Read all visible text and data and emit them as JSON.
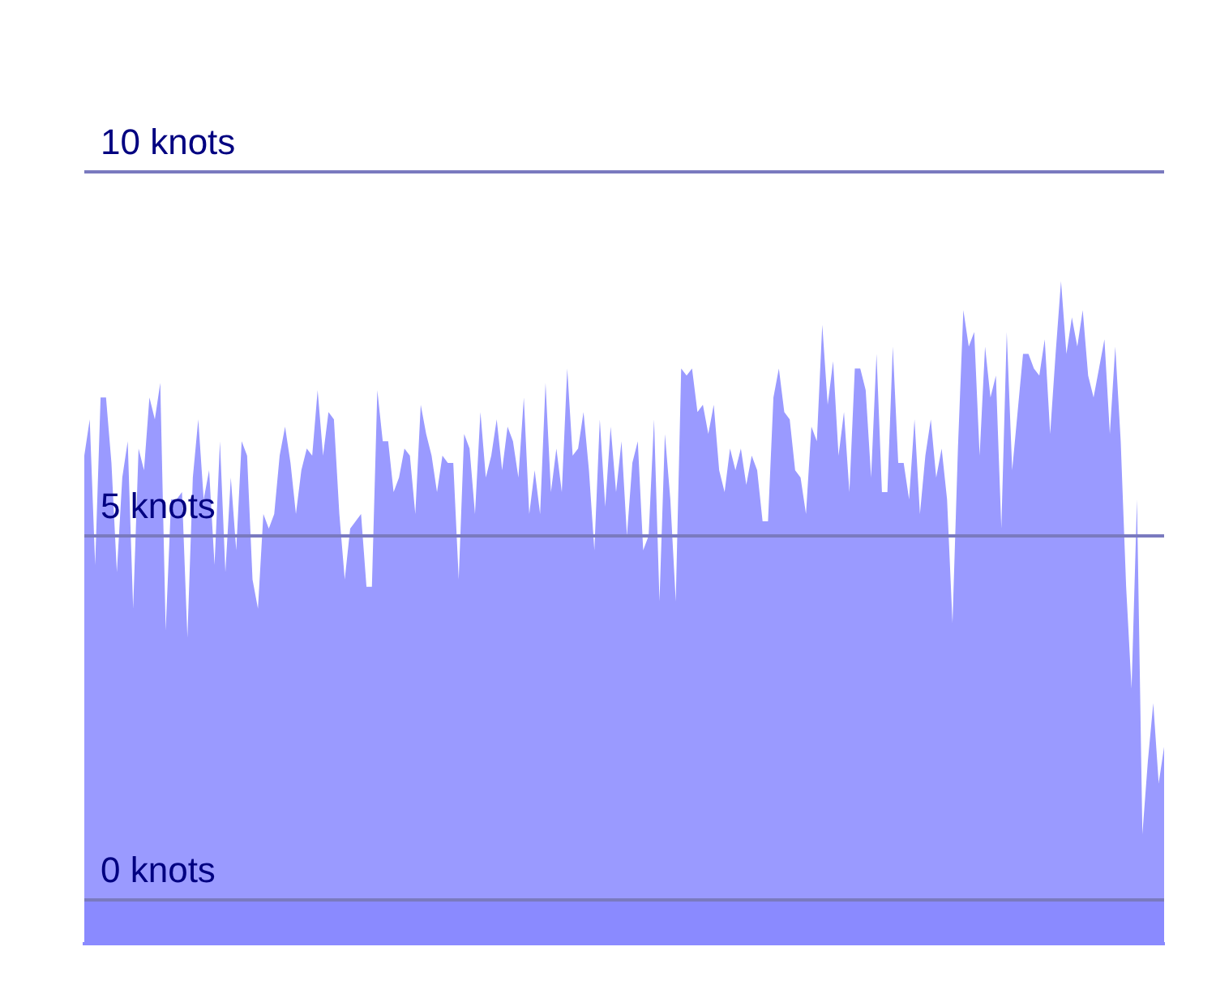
{
  "chart_data": {
    "type": "area",
    "categories": [
      null,
      null,
      null,
      null,
      null,
      null,
      null,
      null,
      null,
      null,
      null,
      null,
      null,
      null,
      null,
      null,
      null,
      null,
      null,
      null,
      null,
      null,
      null,
      null,
      null,
      null,
      null,
      null,
      null,
      null,
      null,
      null,
      null,
      null,
      null,
      null,
      null,
      null,
      null,
      null,
      null,
      null,
      null,
      null,
      null,
      null,
      null,
      null,
      null,
      null,
      null,
      null,
      null,
      null,
      null,
      null,
      null,
      null,
      null,
      null,
      null,
      null,
      null,
      null,
      null,
      null,
      null,
      null,
      null,
      null,
      null,
      null,
      null,
      null,
      null,
      null,
      null,
      null,
      null,
      null,
      null,
      null,
      null,
      null,
      null,
      null,
      null,
      null,
      null,
      null,
      null,
      null,
      null,
      null,
      null,
      null,
      null,
      null,
      null,
      null,
      null,
      null,
      null,
      null,
      null,
      null,
      null,
      null,
      null,
      null,
      null,
      null,
      null,
      null,
      null,
      null,
      null,
      null,
      null,
      null,
      null,
      null,
      null,
      null,
      null,
      null,
      null,
      null,
      null,
      null,
      null,
      null,
      null,
      null,
      null,
      null,
      null,
      null,
      null,
      null,
      null,
      null,
      null,
      null,
      null,
      null,
      null,
      null,
      null,
      null,
      null,
      null,
      null,
      null,
      null,
      null,
      null,
      null,
      null,
      null,
      null,
      null,
      null,
      null,
      null,
      null,
      null,
      null,
      null,
      null,
      null,
      null,
      null,
      null,
      null,
      null,
      null,
      null,
      null,
      null,
      null,
      null,
      null,
      null,
      null,
      null,
      null,
      null,
      null,
      null,
      null,
      null,
      null,
      null,
      null,
      null,
      null,
      null,
      null,
      null
    ],
    "values": [
      6.1,
      6.6,
      4.6,
      6.9,
      6.9,
      6.0,
      4.5,
      5.8,
      6.3,
      4.0,
      6.2,
      5.9,
      6.9,
      6.6,
      7.1,
      3.7,
      5.5,
      5.5,
      5.6,
      3.6,
      5.8,
      6.6,
      5.5,
      5.9,
      4.6,
      6.3,
      4.5,
      5.8,
      4.8,
      6.3,
      6.1,
      4.4,
      4.0,
      5.3,
      5.1,
      5.3,
      6.1,
      6.5,
      6.0,
      5.3,
      5.9,
      6.2,
      6.1,
      7.0,
      6.1,
      6.7,
      6.6,
      5.3,
      4.4,
      5.1,
      5.2,
      5.3,
      4.3,
      4.3,
      7.0,
      6.3,
      6.3,
      5.6,
      5.8,
      6.2,
      6.1,
      5.3,
      6.8,
      6.4,
      6.1,
      5.6,
      6.1,
      6.0,
      6.0,
      4.4,
      6.4,
      6.2,
      5.3,
      6.7,
      5.8,
      6.1,
      6.6,
      5.9,
      6.5,
      6.3,
      5.8,
      6.9,
      5.3,
      5.9,
      5.3,
      7.1,
      5.6,
      6.2,
      5.6,
      7.3,
      6.1,
      6.2,
      6.7,
      5.9,
      4.8,
      6.6,
      5.4,
      6.5,
      5.6,
      6.3,
      5.0,
      6.0,
      6.3,
      4.8,
      5.0,
      6.6,
      4.1,
      6.4,
      5.5,
      4.1,
      7.3,
      7.2,
      7.3,
      6.7,
      6.8,
      6.4,
      6.8,
      5.9,
      5.6,
      6.2,
      5.9,
      6.2,
      5.7,
      6.1,
      5.9,
      5.2,
      5.2,
      6.9,
      7.3,
      6.7,
      6.6,
      5.9,
      5.8,
      5.3,
      6.5,
      6.3,
      7.9,
      6.8,
      7.4,
      6.1,
      6.7,
      5.6,
      7.3,
      7.3,
      7.0,
      5.8,
      7.5,
      5.6,
      5.6,
      7.6,
      6.0,
      6.0,
      5.5,
      6.6,
      5.3,
      6.1,
      6.6,
      5.8,
      6.2,
      5.5,
      3.8,
      6.2,
      8.1,
      7.6,
      7.8,
      6.1,
      7.6,
      6.9,
      7.2,
      5.1,
      7.8,
      5.9,
      6.7,
      7.5,
      7.5,
      7.3,
      7.2,
      7.7,
      6.4,
      7.5,
      8.5,
      7.5,
      8.0,
      7.6,
      8.1,
      7.2,
      6.9,
      7.3,
      7.7,
      6.4,
      7.6,
      6.3,
      4.3,
      2.9,
      5.5,
      0.9,
      1.9,
      2.7,
      1.6,
      2.1
    ],
    "color": "#9a9aff",
    "ylim": [
      -0.6,
      10
    ],
    "bands": [
      {
        "axis": "y",
        "from": -0.6,
        "to": 0,
        "color": "#8a8aff"
      }
    ],
    "yticks": [
      {
        "value": 0,
        "label": "0 knots"
      },
      {
        "value": 5,
        "label": "5 knots"
      },
      {
        "value": 10,
        "label": "10 knots"
      }
    ],
    "grid": true,
    "legend": false
  }
}
